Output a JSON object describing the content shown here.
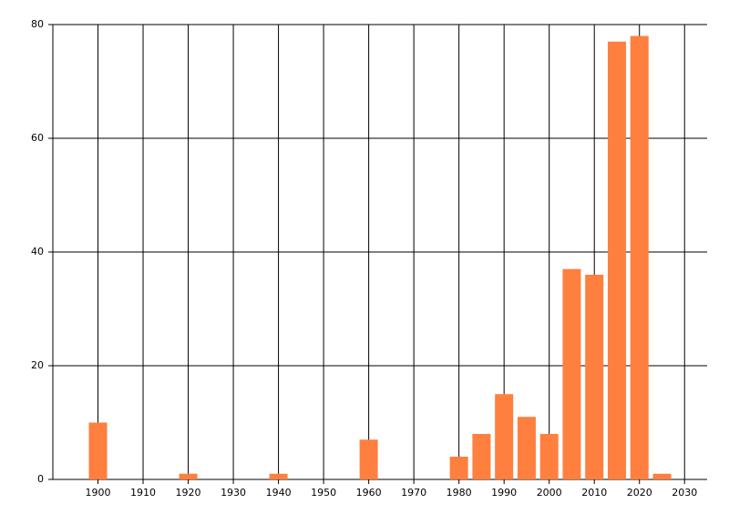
{
  "chart_data": {
    "type": "bar",
    "x": [
      1900,
      1920,
      1940,
      1960,
      1980,
      1985,
      1990,
      1995,
      2000,
      2005,
      2010,
      2015,
      2020,
      2025
    ],
    "values": [
      10,
      1,
      1,
      7,
      4,
      8,
      15,
      11,
      8,
      37,
      36,
      77,
      78,
      1
    ],
    "color": "#ff7f3f",
    "xlim": [
      1890,
      2035
    ],
    "xticks": [
      1900,
      1910,
      1920,
      1930,
      1940,
      1950,
      1960,
      1970,
      1980,
      1990,
      2000,
      2010,
      2020,
      2030
    ],
    "ylim": [
      0,
      80
    ],
    "yticks": [
      0,
      20,
      40,
      60,
      80
    ],
    "grid": true
  }
}
